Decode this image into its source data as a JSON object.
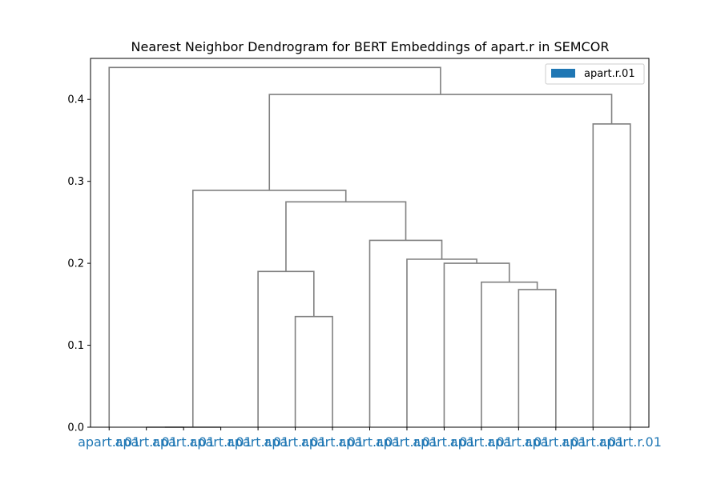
{
  "chart_data": {
    "type": "dendrogram",
    "title": "Nearest Neighbor Dendrogram for BERT Embeddings of apart.r in SEMCOR",
    "xlabel": "",
    "ylabel": "",
    "ylim": [
      0,
      0.45
    ],
    "yticks": [
      0.0,
      0.1,
      0.2,
      0.3,
      0.4
    ],
    "ytick_labels": [
      "0.0",
      "0.1",
      "0.2",
      "0.3",
      "0.4"
    ],
    "leaves": [
      "apart.r.01",
      "apart.r.01",
      "apart.r.01",
      "apart.r.01",
      "apart.r.01",
      "apart.r.01",
      "apart.r.01",
      "apart.r.01",
      "apart.r.01",
      "apart.r.01",
      "apart.r.01",
      "apart.r.01",
      "apart.r.01",
      "apart.r.01",
      "apart.r.01"
    ],
    "leaf_color": "#1f77b4",
    "link_color": "#808080",
    "merges": [
      {
        "left": 1,
        "right": 2,
        "height": 0.0
      },
      {
        "left": 15,
        "right": 3,
        "height": 0.0
      },
      {
        "left": 5,
        "right": 6,
        "height": 0.135
      },
      {
        "left": 4,
        "right": 17,
        "height": 0.19
      },
      {
        "left": 11,
        "right": 12,
        "height": 0.168
      },
      {
        "left": 10,
        "right": 19,
        "height": 0.177
      },
      {
        "left": 9,
        "right": 20,
        "height": 0.2
      },
      {
        "left": 8,
        "right": 21,
        "height": 0.205
      },
      {
        "left": 7,
        "right": 22,
        "height": 0.228
      },
      {
        "left": 18,
        "right": 23,
        "height": 0.275
      },
      {
        "left": 16,
        "right": 24,
        "height": 0.289
      },
      {
        "left": 13,
        "right": 14,
        "height": 0.37
      },
      {
        "left": 25,
        "right": 26,
        "height": 0.406
      },
      {
        "left": 0,
        "right": 27,
        "height": 0.439
      }
    ],
    "legend": {
      "entries": [
        {
          "label": "apart.r.01",
          "color": "#1f77b4"
        }
      ],
      "position": "upper-right"
    },
    "grid": false
  }
}
